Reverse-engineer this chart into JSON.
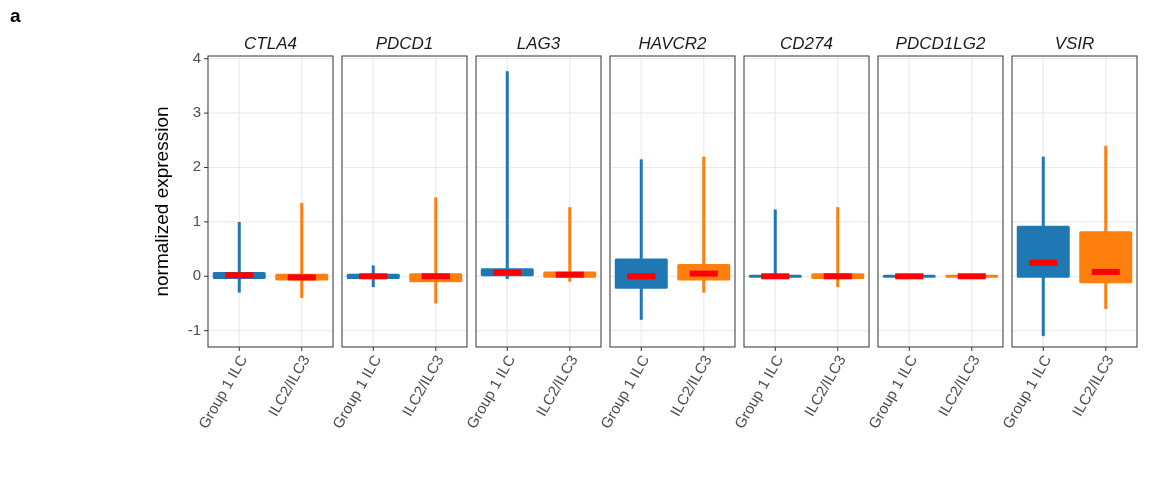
{
  "chart_data": [
    {
      "type": "box",
      "title": "CTLA4",
      "ylabel": "normalized expression",
      "annotations": [
        "a"
      ],
      "categories": [
        "Group 1 ILC",
        "ILC2/ILC3"
      ],
      "colors": [
        "#1f77b4",
        "#ff7f0e"
      ],
      "ylim": [
        -1.3,
        4.05
      ],
      "yticks": [
        -1,
        0,
        1,
        2,
        3,
        4
      ],
      "grid": true,
      "boxes": [
        {
          "low": -0.3,
          "q1": -0.02,
          "median": 0.02,
          "q3": 0.05,
          "high": 1.0
        },
        {
          "low": -0.4,
          "q1": -0.05,
          "median": -0.02,
          "q3": 0.02,
          "high": 1.35
        }
      ]
    },
    {
      "type": "box",
      "title": "PDCD1",
      "categories": [
        "Group 1 ILC",
        "ILC2/ILC3"
      ],
      "colors": [
        "#1f77b4",
        "#ff7f0e"
      ],
      "ylim": [
        -1.3,
        4.05
      ],
      "yticks": [
        -1,
        0,
        1,
        2,
        3,
        4
      ],
      "grid": true,
      "tick_labels": "x",
      "boxes": [
        {
          "low": -0.2,
          "q1": -0.02,
          "median": 0,
          "q3": 0.02,
          "high": 0.2
        },
        {
          "low": -0.5,
          "q1": -0.08,
          "median": 0,
          "q3": 0.03,
          "high": 1.45
        }
      ]
    },
    {
      "type": "box",
      "title": "LAG3",
      "categories": [
        "Group 1 ILC",
        "ILC2/ILC3"
      ],
      "colors": [
        "#1f77b4",
        "#ff7f0e"
      ],
      "ylim": [
        -1.3,
        4.05
      ],
      "yticks": [
        -1,
        0,
        1,
        2,
        3,
        4
      ],
      "grid": true,
      "tick_labels": "x",
      "boxes": [
        {
          "low": -0.05,
          "q1": 0.03,
          "median": 0.07,
          "q3": 0.12,
          "high": 3.77
        },
        {
          "low": -0.1,
          "q1": 0,
          "median": 0.03,
          "q3": 0.06,
          "high": 1.27
        }
      ]
    },
    {
      "type": "box",
      "title": "HAVCR2",
      "categories": [
        "Group 1 ILC",
        "ILC2/ILC3"
      ],
      "colors": [
        "#1f77b4",
        "#ff7f0e"
      ],
      "ylim": [
        -1.3,
        4.05
      ],
      "yticks": [
        -1,
        0,
        1,
        2,
        3,
        4
      ],
      "grid": true,
      "tick_labels": "x",
      "boxes": [
        {
          "low": -0.8,
          "q1": -0.2,
          "median": 0,
          "q3": 0.3,
          "high": 2.15
        },
        {
          "low": -0.3,
          "q1": -0.05,
          "median": 0.05,
          "q3": 0.2,
          "high": 2.2
        }
      ]
    },
    {
      "type": "box",
      "title": "CD274",
      "categories": [
        "Group 1 ILC",
        "ILC2/ILC3"
      ],
      "colors": [
        "#1f77b4",
        "#ff7f0e"
      ],
      "ylim": [
        -1.3,
        4.05
      ],
      "yticks": [
        -1,
        0,
        1,
        2,
        3,
        4
      ],
      "grid": true,
      "tick_labels": "x",
      "boxes": [
        {
          "low": 0,
          "q1": 0,
          "median": 0,
          "q3": 0,
          "high": 1.23
        },
        {
          "low": -0.2,
          "q1": -0.02,
          "median": 0,
          "q3": 0.03,
          "high": 1.27
        }
      ]
    },
    {
      "type": "box",
      "title": "PDCD1LG2",
      "categories": [
        "Group 1 ILC",
        "ILC2/ILC3"
      ],
      "colors": [
        "#1f77b4",
        "#ff7f0e"
      ],
      "ylim": [
        -1.3,
        4.05
      ],
      "yticks": [
        -1,
        0,
        1,
        2,
        3,
        4
      ],
      "grid": true,
      "tick_labels": "x",
      "boxes": [
        {
          "low": 0,
          "q1": 0,
          "median": 0,
          "q3": 0,
          "high": 0
        },
        {
          "low": 0,
          "q1": 0,
          "median": 0,
          "q3": 0,
          "high": 0
        }
      ]
    },
    {
      "type": "box",
      "title": "VSIR",
      "categories": [
        "Group 1 ILC",
        "ILC2/ILC3"
      ],
      "colors": [
        "#1f77b4",
        "#ff7f0e"
      ],
      "ylim": [
        -1.3,
        4.05
      ],
      "yticks": [
        -1,
        0,
        1,
        2,
        3,
        4
      ],
      "grid": true,
      "tick_labels": "x",
      "boxes": [
        {
          "low": -1.1,
          "q1": 0,
          "median": 0.25,
          "q3": 0.9,
          "high": 2.2
        },
        {
          "low": -0.6,
          "q1": -0.1,
          "median": 0.08,
          "q3": 0.8,
          "high": 2.4
        }
      ]
    }
  ]
}
